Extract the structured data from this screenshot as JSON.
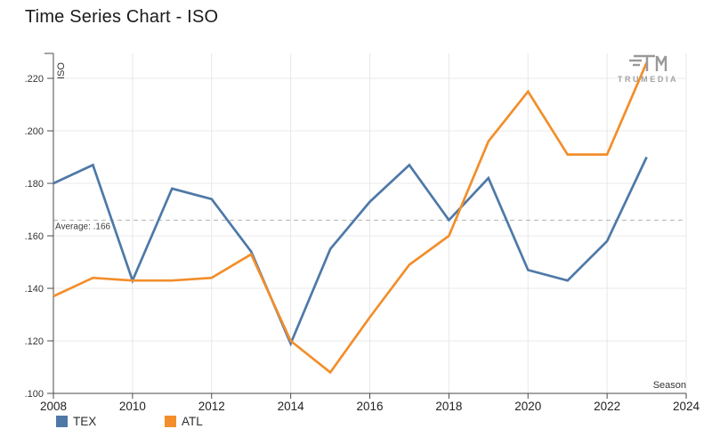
{
  "header": {
    "title": "Time Series Chart - ISO",
    "logo_text": "TRUMEDIA"
  },
  "chart_data": {
    "type": "line",
    "title": "Time Series Chart - ISO",
    "xlabel": "Season",
    "ylabel": "ISO",
    "x": [
      2008,
      2009,
      2010,
      2011,
      2012,
      2013,
      2014,
      2015,
      2016,
      2017,
      2018,
      2019,
      2020,
      2021,
      2022,
      2023
    ],
    "series": [
      {
        "name": "TEX",
        "color": "#4e79a7",
        "values": [
          0.18,
          0.187,
          0.143,
          0.178,
          0.174,
          0.154,
          0.119,
          0.155,
          0.173,
          0.187,
          0.166,
          0.182,
          0.147,
          0.143,
          0.158,
          0.19
        ]
      },
      {
        "name": "ATL",
        "color": "#f28e2b",
        "values": [
          0.137,
          0.144,
          0.143,
          0.143,
          0.144,
          0.153,
          0.12,
          0.108,
          0.129,
          0.149,
          0.16,
          0.196,
          0.215,
          0.191,
          0.191,
          0.226
        ]
      }
    ],
    "average_line": {
      "label": "Average: .166",
      "value": 0.166
    },
    "y_tick_values": [
      0.1,
      0.12,
      0.14,
      0.16,
      0.18,
      0.2,
      0.22
    ],
    "y_tick_labels": [
      ".100",
      ".120",
      ".140",
      ".160",
      ".180",
      ".200",
      ".220"
    ],
    "x_tick_values": [
      2008,
      2010,
      2012,
      2014,
      2016,
      2018,
      2020,
      2022,
      2024
    ],
    "x_tick_labels": [
      "2008",
      "2010",
      "2012",
      "2014",
      "2016",
      "2018",
      "2020",
      "2022",
      "2024"
    ],
    "xlim": [
      2008,
      2024
    ],
    "ylim": [
      0.1,
      0.2295
    ],
    "grid": true,
    "legend_position": "bottom-left"
  },
  "colors": {
    "grid": "#e8e8e8",
    "axis": "#4a4a4a",
    "tick_label": "#333333",
    "average_line": "#b3b3b3",
    "average_text": "#3a3a3a",
    "logo": "#999999"
  }
}
